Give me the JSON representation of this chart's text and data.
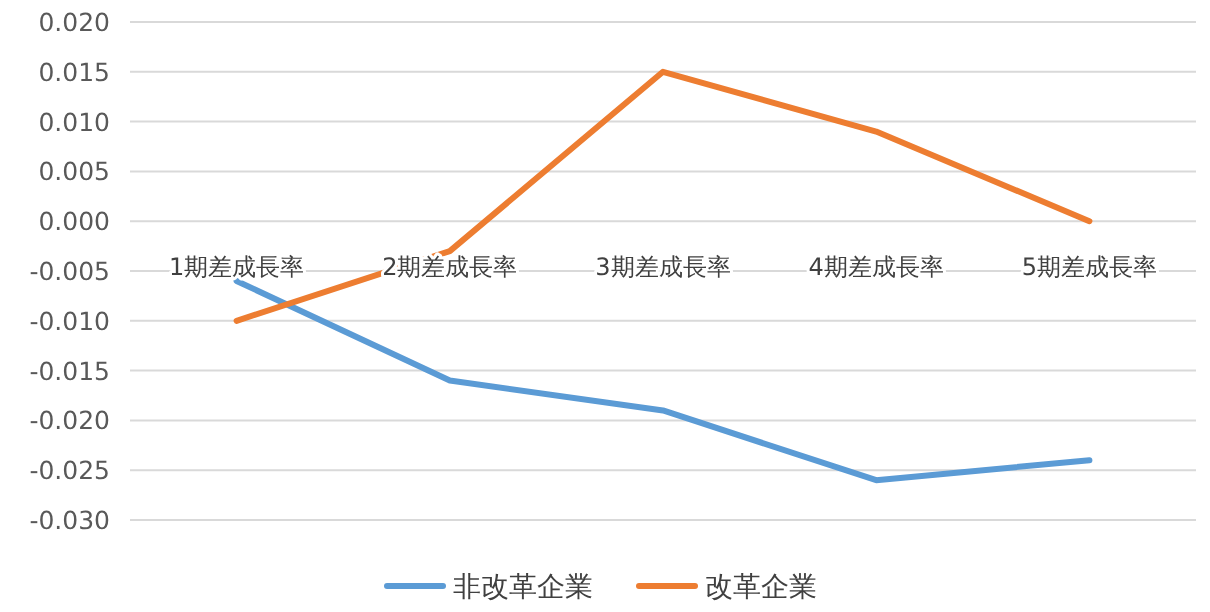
{
  "chart_data": {
    "type": "line",
    "categories": [
      "1期差成長率",
      "2期差成長率",
      "3期差成長率",
      "4期差成長率",
      "5期差成長率"
    ],
    "series": [
      {
        "name": "非改革企業",
        "color": "#5b9bd5",
        "values": [
          -0.006,
          -0.016,
          -0.019,
          -0.026,
          -0.024
        ]
      },
      {
        "name": "改革企業",
        "color": "#ed7d31",
        "values": [
          -0.01,
          -0.003,
          0.015,
          0.009,
          0.0
        ]
      }
    ],
    "ylim": [
      -0.03,
      0.02
    ],
    "yticks": [
      {
        "value": -0.03,
        "label": "-0.030"
      },
      {
        "value": -0.025,
        "label": "-0.025"
      },
      {
        "value": -0.02,
        "label": "-0.020"
      },
      {
        "value": -0.015,
        "label": "-0.015"
      },
      {
        "value": -0.01,
        "label": "-0.010"
      },
      {
        "value": -0.005,
        "label": "-0.005"
      },
      {
        "value": 0,
        "label": "0.000"
      },
      {
        "value": 0.005,
        "label": "0.005"
      },
      {
        "value": 0.01,
        "label": "0.010"
      },
      {
        "value": 0.015,
        "label": "0.015"
      },
      {
        "value": 0.02,
        "label": "0.020"
      }
    ],
    "grid": "y",
    "legend": "bottom",
    "marker": "none",
    "line_style": "solid"
  }
}
